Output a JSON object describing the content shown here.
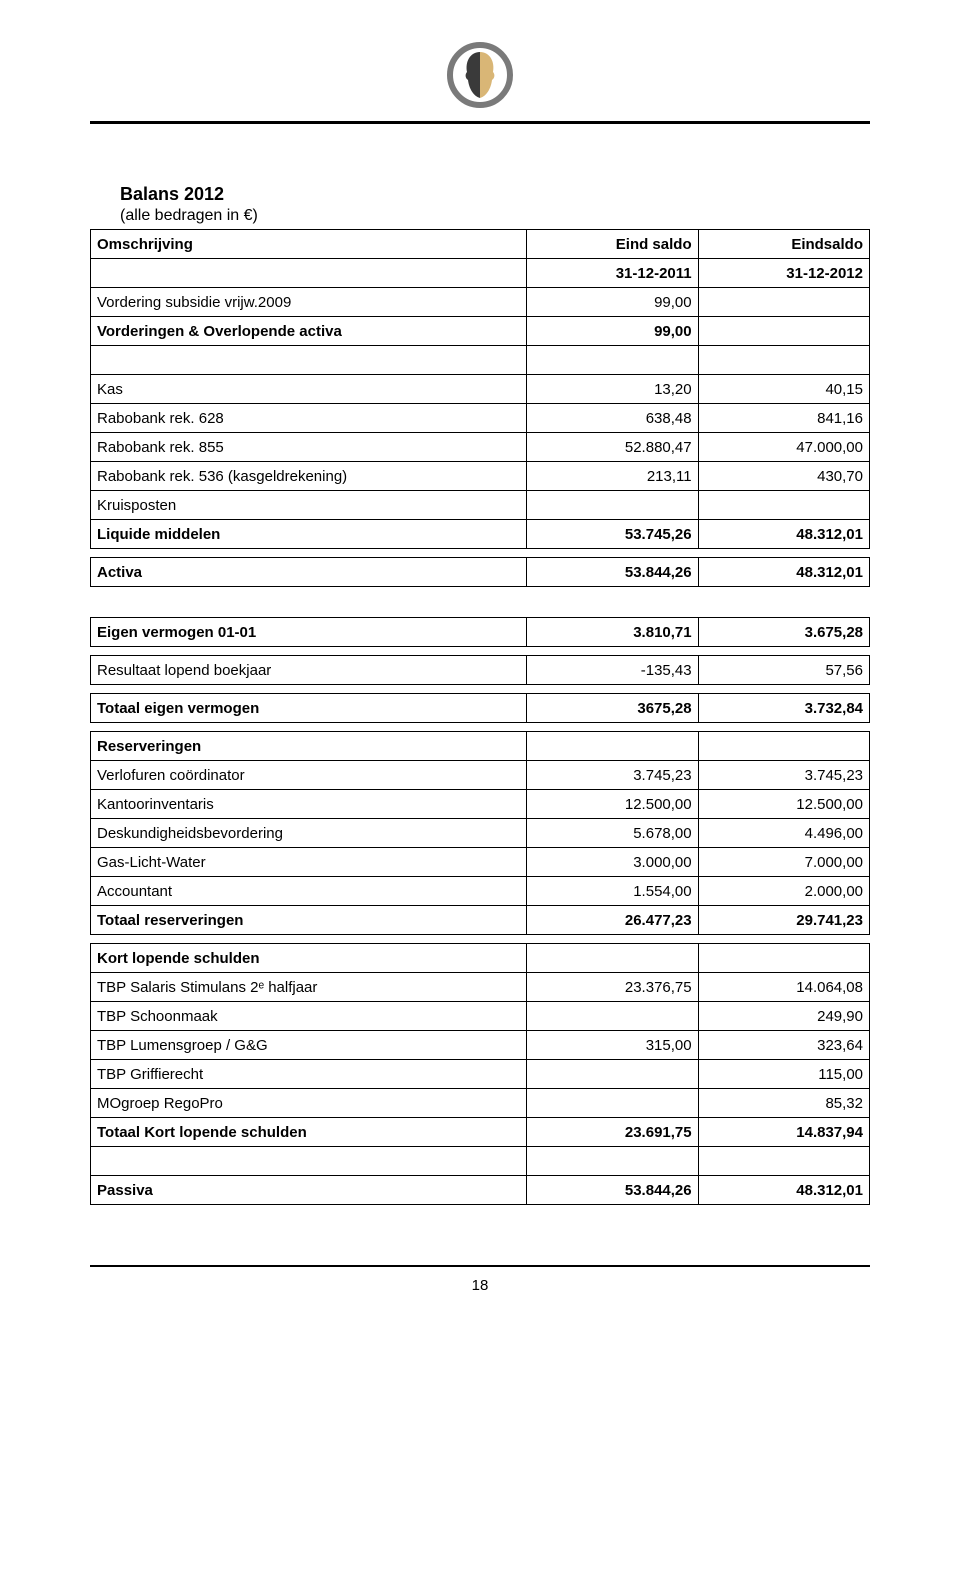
{
  "page_number": "18",
  "title": "Balans 2012",
  "subtitle": "(alle bedragen in €)",
  "headers": {
    "desc": "Omschrijving",
    "col1_a": "Eind saldo",
    "col1_b": "31-12-2011",
    "col2_a": "Eindsaldo",
    "col2_b": "31-12-2012"
  },
  "activa": [
    {
      "desc": "Vordering subsidie vrijw.2009",
      "v1": "99,00",
      "v2": "",
      "bold": false
    },
    {
      "desc": "Vorderingen & Overlopende activa",
      "v1": "99,00",
      "v2": "",
      "bold": true
    },
    {
      "desc": "",
      "v1": "",
      "v2": "",
      "bold": false
    },
    {
      "desc": "Kas",
      "v1": "13,20",
      "v2": "40,15",
      "bold": false
    },
    {
      "desc": "Rabobank rek. 628",
      "v1": "638,48",
      "v2": "841,16",
      "bold": false
    },
    {
      "desc": "Rabobank rek. 855",
      "v1": "52.880,47",
      "v2": "47.000,00",
      "bold": false
    },
    {
      "desc": "Rabobank rek. 536 (kasgeldrekening)",
      "v1": "213,11",
      "v2": "430,70",
      "bold": false
    },
    {
      "desc": "Kruisposten",
      "v1": "",
      "v2": "",
      "bold": false
    },
    {
      "desc": "Liquide middelen",
      "v1": "53.745,26",
      "v2": "48.312,01",
      "bold": true
    }
  ],
  "activa_total": {
    "desc": "Activa",
    "v1": "53.844,26",
    "v2": "48.312,01"
  },
  "eigen_vermogen_start": {
    "desc": "Eigen vermogen 01-01",
    "v1": "3.810,71",
    "v2": "3.675,28"
  },
  "resultaat": {
    "desc": "Resultaat lopend boekjaar",
    "v1": "-135,43",
    "v2": "57,56"
  },
  "totaal_ev": {
    "desc": "Totaal eigen vermogen",
    "v1": "3675,28",
    "v2": "3.732,84"
  },
  "reserveringen_header": "Reserveringen",
  "reserveringen": [
    {
      "desc": "Verlofuren coördinator",
      "v1": "3.745,23",
      "v2": "3.745,23"
    },
    {
      "desc": "Kantoorinventaris",
      "v1": "12.500,00",
      "v2": "12.500,00"
    },
    {
      "desc": "Deskundigheidsbevordering",
      "v1": "5.678,00",
      "v2": "4.496,00"
    },
    {
      "desc": "Gas-Licht-Water",
      "v1": "3.000,00",
      "v2": "7.000,00"
    },
    {
      "desc": "Accountant",
      "v1": "1.554,00",
      "v2": "2.000,00"
    }
  ],
  "totaal_res": {
    "desc": "Totaal reserveringen",
    "v1": "26.477,23",
    "v2": "29.741,23"
  },
  "kort_header": "Kort lopende schulden",
  "kort": [
    {
      "desc": "TBP Salaris Stimulans 2ᵉ halfjaar",
      "v1": "23.376,75",
      "v2": "14.064,08"
    },
    {
      "desc": "TBP Schoonmaak",
      "v1": "",
      "v2": "249,90"
    },
    {
      "desc": "TBP Lumensgroep / G&G",
      "v1": "315,00",
      "v2": "323,64"
    },
    {
      "desc": "TBP Griffierecht",
      "v1": "",
      "v2": "115,00"
    },
    {
      "desc": "MOgroep RegoPro",
      "v1": "",
      "v2": "85,32"
    }
  ],
  "totaal_kort": {
    "desc": "Totaal Kort lopende schulden",
    "v1": "23.691,75",
    "v2": "14.837,94"
  },
  "passiva": {
    "desc": "Passiva",
    "v1": "53.844,26",
    "v2": "48.312,01"
  },
  "style": {
    "background": "#ffffff",
    "text_color": "#000000",
    "border_color": "#000000",
    "font_family": "Verdana, Arial, sans-serif",
    "title_fontsize": 18,
    "body_fontsize": 15,
    "logo_colors": {
      "ring": "#7a7a7a",
      "face_left": "#3a3a3a",
      "face_right": "#d9b676"
    }
  }
}
